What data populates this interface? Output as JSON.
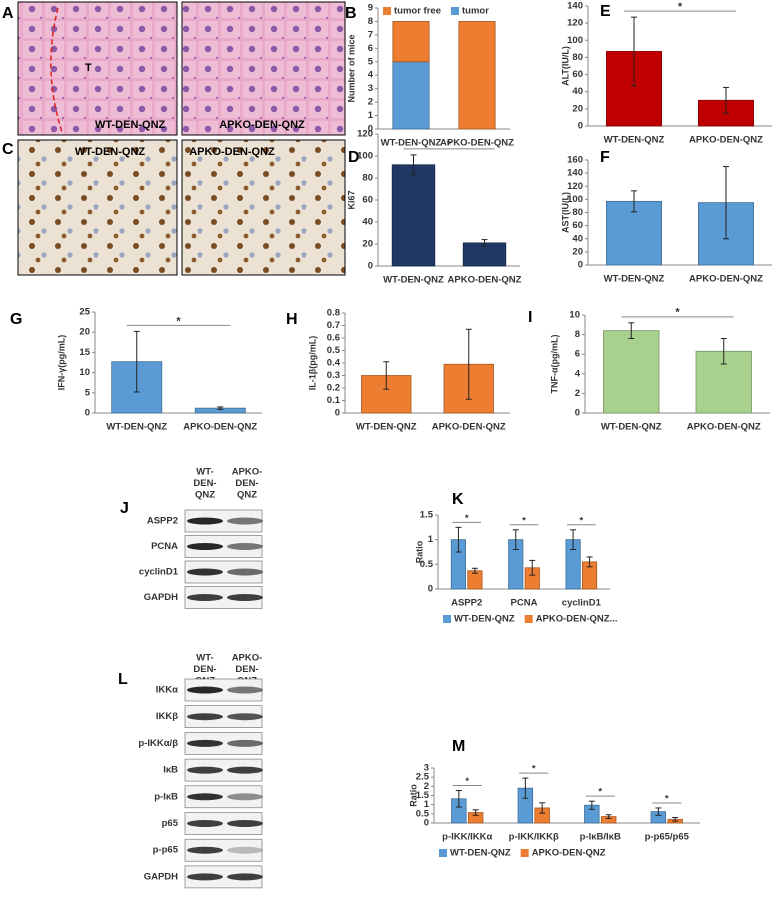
{
  "images": [
    {
      "panel": "A",
      "left_labels": [
        "T",
        "WT-DEN-QNZ"
      ],
      "right_labels": [
        "APKO-DEN-QNZ"
      ]
    },
    {
      "panel": "C",
      "left_labels": [
        "WT-DEN-QNZ"
      ],
      "right_labels": [
        "APKO-DEN-QNZ"
      ]
    }
  ],
  "blots": [
    {
      "panel": "J",
      "columns": [
        [
          "WT-",
          "DEN-",
          "QNZ"
        ],
        [
          "APKO-",
          "DEN-",
          "QNZ"
        ]
      ],
      "rows": [
        "ASPP2",
        "PCNA",
        "cyclinD1",
        "GAPDH"
      ]
    },
    {
      "panel": "L",
      "columns": [
        [
          "WT-",
          "DEN-",
          "QNZ"
        ],
        [
          "APKO-",
          "DEN-",
          "QNZ"
        ]
      ],
      "rows": [
        "IKKα",
        "IKKβ",
        "p-IKKα/β",
        "IκB",
        "p-IκB",
        "p65",
        "p-p65",
        "GAPDH"
      ]
    }
  ],
  "chart_data": [
    {
      "panel": "B",
      "type": "stacked_bar",
      "ylabel": "Number of mice",
      "categories": [
        "WT-DEN-QNZ",
        "APKO-DEN-QNZ"
      ],
      "series": [
        {
          "name": "tumor",
          "color": "#5b9bd5",
          "values": [
            5,
            0
          ]
        },
        {
          "name": "tumor free",
          "color": "#ed7d31",
          "values": [
            3,
            8
          ]
        }
      ],
      "ylim": [
        0,
        9
      ],
      "yticks": [
        0,
        1,
        2,
        3,
        4,
        5,
        6,
        7,
        8,
        9
      ],
      "legend": "top"
    },
    {
      "panel": "E",
      "type": "bar",
      "ylabel": "ALT(IU/L)",
      "categories": [
        "WT-DEN-QNZ",
        "APKO-DEN-QNZ"
      ],
      "values": [
        87,
        30
      ],
      "errors": [
        40,
        15
      ],
      "color": "#c00000",
      "ylim": [
        0,
        140
      ],
      "yticks": [
        0,
        20,
        40,
        60,
        80,
        100,
        120,
        140
      ],
      "significance": "*"
    },
    {
      "panel": "D",
      "type": "bar",
      "ylabel": "Ki67",
      "categories": [
        "WT-DEN-QNZ",
        "APKO-DEN-QNZ"
      ],
      "values": [
        92,
        21
      ],
      "errors": [
        9,
        3
      ],
      "color": "#203864",
      "ylim": [
        0,
        120
      ],
      "yticks": [
        0,
        20,
        40,
        60,
        80,
        100,
        120
      ],
      "significance": "*"
    },
    {
      "panel": "F",
      "type": "bar",
      "ylabel": "AST(IU/L)",
      "categories": [
        "WT-DEN-QNZ",
        "APKO-DEN-QNZ"
      ],
      "values": [
        97,
        95
      ],
      "errors": [
        16,
        55
      ],
      "color": "#5b9bd5",
      "ylim": [
        0,
        160
      ],
      "yticks": [
        0,
        20,
        40,
        60,
        80,
        100,
        120,
        140,
        160
      ]
    },
    {
      "panel": "G",
      "type": "bar",
      "ylabel": "IFN-γ(pg/mL)",
      "categories": [
        "WT-DEN-QNZ",
        "APKO-DEN-QNZ"
      ],
      "values": [
        12.7,
        1.2
      ],
      "errors": [
        7.5,
        0.3
      ],
      "color": "#5b9bd5",
      "ylim": [
        0,
        25
      ],
      "yticks": [
        0,
        5,
        10,
        15,
        20,
        25
      ],
      "significance": "*"
    },
    {
      "panel": "H",
      "type": "bar",
      "ylabel": "IL-1β(pg/mL)",
      "categories": [
        "WT-DEN-QNZ",
        "APKO-DEN-QNZ"
      ],
      "values": [
        0.3,
        0.39
      ],
      "errors": [
        0.11,
        0.28
      ],
      "color": "#ed7d31",
      "ylim": [
        0,
        0.8
      ],
      "yticks": [
        0,
        0.1,
        0.2,
        0.3,
        0.4,
        0.5,
        0.6,
        0.7,
        0.8
      ]
    },
    {
      "panel": "I",
      "type": "bar",
      "ylabel": "TNF-α(pg/mL)",
      "categories": [
        "WT-DEN-QNZ",
        "APKO-DEN-QNZ"
      ],
      "values": [
        8.4,
        6.3
      ],
      "errors": [
        0.8,
        1.3
      ],
      "color": "#a9d18e",
      "ylim": [
        0,
        10
      ],
      "yticks": [
        0,
        2,
        4,
        6,
        8,
        10
      ],
      "significance": "*"
    },
    {
      "panel": "K",
      "type": "grouped_bar",
      "ylabel": "Ratio",
      "categories": [
        "ASPP2",
        "PCNA",
        "cyclinD1"
      ],
      "series": [
        {
          "name": "WT-DEN-QNZ",
          "color": "#5b9bd5",
          "values": [
            1,
            1,
            1
          ],
          "errors": [
            0.25,
            0.2,
            0.2
          ]
        },
        {
          "name": "APKO-DEN-QNZ...",
          "color": "#ed7d31",
          "values": [
            0.37,
            0.43,
            0.55
          ],
          "errors": [
            0.05,
            0.15,
            0.1
          ]
        }
      ],
      "ylim": [
        0,
        1.5
      ],
      "yticks": [
        0,
        0.5,
        1,
        1.5
      ],
      "significance": [
        "*",
        "*",
        "*"
      ],
      "legend": "bottom"
    },
    {
      "panel": "M",
      "type": "grouped_bar",
      "ylabel": "Ratio",
      "categories": [
        "p-IKK/IKKα",
        "p-IKK/IKKβ",
        "p-IκB/IκB",
        "p-p65/p65"
      ],
      "series": [
        {
          "name": "WT-DEN-QNZ",
          "color": "#5b9bd5",
          "values": [
            1.32,
            1.9,
            0.97,
            0.62
          ],
          "errors": [
            0.45,
            0.55,
            0.22,
            0.2
          ]
        },
        {
          "name": "APKO-DEN-QNZ",
          "color": "#ed7d31",
          "values": [
            0.57,
            0.82,
            0.35,
            0.2
          ],
          "errors": [
            0.15,
            0.28,
            0.1,
            0.1
          ]
        }
      ],
      "ylim": [
        0,
        3
      ],
      "yticks": [
        0,
        0.5,
        1,
        1.5,
        2,
        2.5,
        3
      ],
      "significance": [
        "*",
        "*",
        "*",
        "*"
      ],
      "legend": "bottom"
    }
  ]
}
